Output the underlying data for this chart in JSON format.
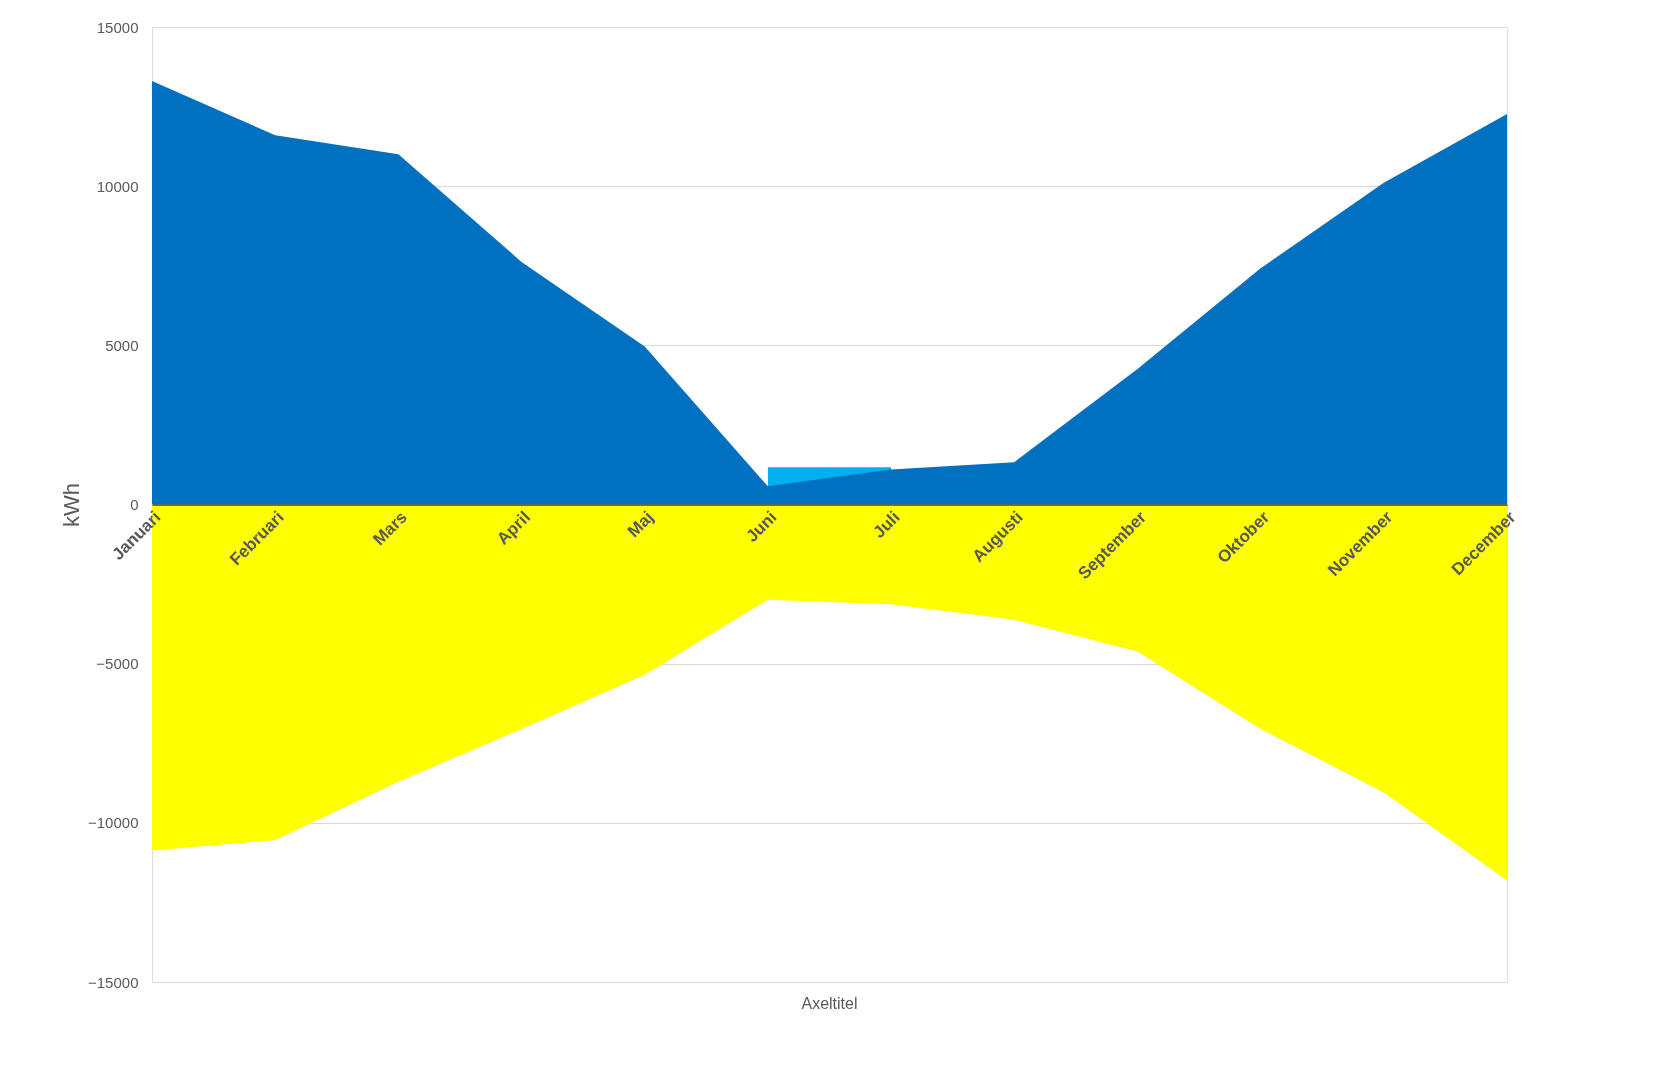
{
  "chart_data": {
    "type": "area",
    "xlabel": "Axeltitel",
    "ylabel": "kWh",
    "categories": [
      "Januari",
      "Februari",
      "Mars",
      "April",
      "Maj",
      "Juni",
      "Juli",
      "Augusti",
      "September",
      "Oktober",
      "November",
      "December"
    ],
    "series": [
      {
        "color": "#00b0f0",
        "values": [
          null,
          null,
          null,
          null,
          null,
          1170,
          1170,
          null,
          null,
          null,
          null,
          null
        ]
      },
      {
        "color": "#0070c0",
        "values": [
          13300,
          11600,
          11000,
          7620,
          4960,
          570,
          1100,
          1330,
          4260,
          7420,
          10110,
          12270
        ]
      },
      {
        "color": "#ffff00",
        "values": [
          -10870,
          -10540,
          -8710,
          -7050,
          -5350,
          -2990,
          -3130,
          -3620,
          -4620,
          -7050,
          -9050,
          -11810
        ]
      }
    ],
    "ylim": [
      -15000,
      15000
    ],
    "yticks": [
      -15000,
      -10000,
      -5000,
      0,
      5000,
      10000,
      15000
    ],
    "grid": "y"
  }
}
